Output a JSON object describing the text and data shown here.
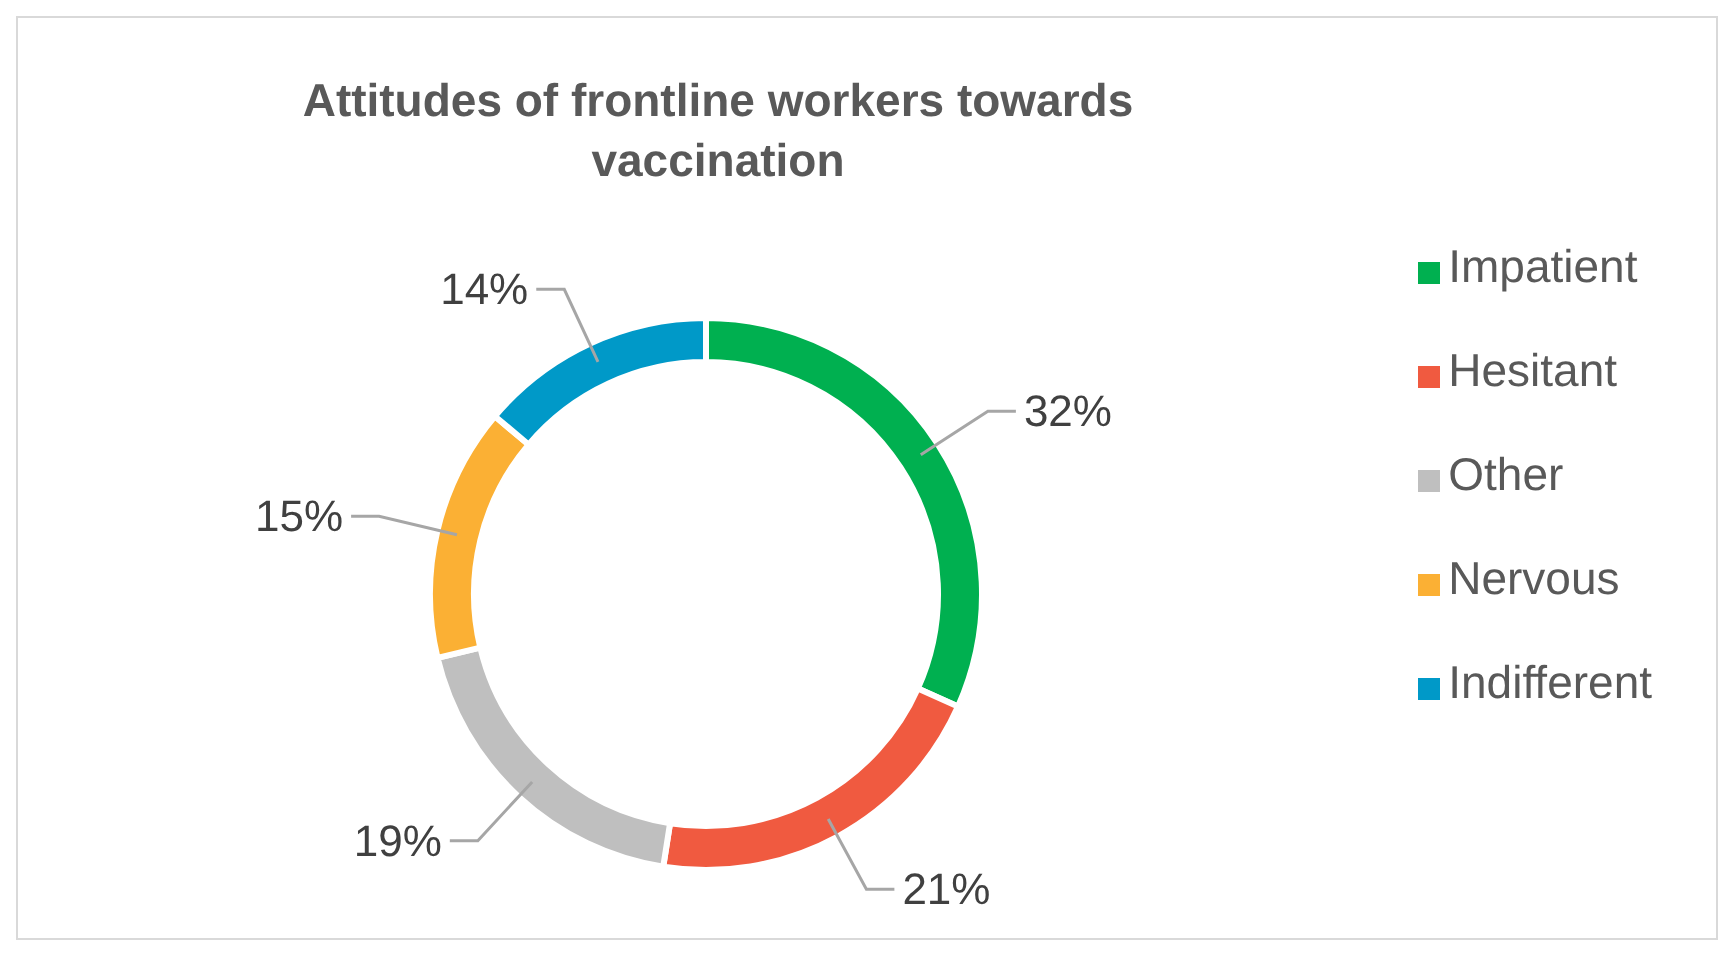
{
  "chart_data": {
    "type": "donut",
    "title": "Attitudes of frontline workers towards vaccination",
    "categories": [
      "Impatient",
      "Hesitant",
      "Other",
      "Nervous",
      "Indifferent"
    ],
    "values": [
      32,
      21,
      19,
      15,
      14
    ],
    "colors": [
      "#00b050",
      "#f05a40",
      "#bfbfbf",
      "#fbb034",
      "#0099c8"
    ],
    "value_labels": [
      "32%",
      "21%",
      "19%",
      "15%",
      "14%"
    ],
    "legend": "right"
  }
}
